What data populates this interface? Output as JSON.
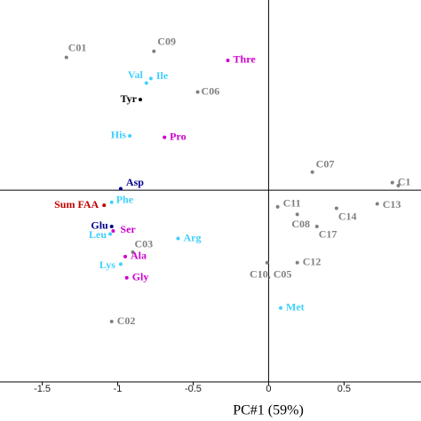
{
  "chart_data": {
    "type": "scatter",
    "x_label": "PC#1 (59%)",
    "xlim": [
      -1.78,
      1.01
    ],
    "ylim": [
      -1.27,
      1.26
    ],
    "xticks": [
      -1.5,
      -1,
      -0.5,
      0,
      0.5
    ],
    "points": [
      {
        "label": "C01",
        "x": -1.34,
        "y": 0.88,
        "color": "#808080"
      },
      {
        "label": "C09",
        "x": -0.76,
        "y": 0.92,
        "color": "#808080"
      },
      {
        "label": "Thre",
        "x": -0.27,
        "y": 0.86,
        "color": "#cc00cc"
      },
      {
        "label": "Val",
        "x": -0.81,
        "y": 0.71,
        "color": "#40d0ff"
      },
      {
        "label": "Ile",
        "x": -0.78,
        "y": 0.74,
        "color": "#40d0ff"
      },
      {
        "label": "C06",
        "x": -0.47,
        "y": 0.65,
        "color": "#808080"
      },
      {
        "label": "Tyr",
        "x": -0.85,
        "y": 0.6,
        "color": "#000000"
      },
      {
        "label": "His",
        "x": -0.92,
        "y": 0.36,
        "color": "#40d0ff"
      },
      {
        "label": "Pro",
        "x": -0.69,
        "y": 0.35,
        "color": "#cc00cc"
      },
      {
        "label": "C07",
        "x": 0.29,
        "y": 0.12,
        "color": "#808080"
      },
      {
        "label": "C1",
        "x": 0.82,
        "y": 0.05,
        "color": "#808080"
      },
      {
        "label": null,
        "x": 0.86,
        "y": 0.03,
        "color": "#808080"
      },
      {
        "label": "Asp",
        "x": -0.98,
        "y": 0.01,
        "color": "#00008b"
      },
      {
        "label": "C13",
        "x": 0.72,
        "y": -0.09,
        "color": "#808080"
      },
      {
        "label": "C11",
        "x": 0.06,
        "y": -0.11,
        "color": "#808080"
      },
      {
        "label": "C14",
        "x": 0.45,
        "y": -0.12,
        "color": "#808080"
      },
      {
        "label": "C08",
        "x": 0.19,
        "y": -0.16,
        "color": "#808080"
      },
      {
        "label": "C17",
        "x": 0.32,
        "y": -0.24,
        "color": "#808080"
      },
      {
        "label": "Sum FAA",
        "x": -1.09,
        "y": -0.1,
        "color": "#c00000"
      },
      {
        "label": "Phe",
        "x": -1.04,
        "y": -0.08,
        "color": "#40d0ff"
      },
      {
        "label": "Glu",
        "x": -1.04,
        "y": -0.24,
        "color": "#00008b"
      },
      {
        "label": "Ser",
        "x": -1.03,
        "y": -0.27,
        "color": "#cc00cc"
      },
      {
        "label": "Leu",
        "x": -1.05,
        "y": -0.29,
        "color": "#40d0ff"
      },
      {
        "label": "Arg",
        "x": -0.6,
        "y": -0.32,
        "color": "#40d0ff"
      },
      {
        "label": "C03",
        "x": -0.9,
        "y": -0.41,
        "color": "#808080"
      },
      {
        "label": "Ala",
        "x": -0.95,
        "y": -0.44,
        "color": "#cc00cc"
      },
      {
        "label": "Lys",
        "x": -0.98,
        "y": -0.49,
        "color": "#40d0ff"
      },
      {
        "label": "Gly",
        "x": -0.94,
        "y": -0.58,
        "color": "#cc00cc"
      },
      {
        "label": "C12",
        "x": 0.19,
        "y": -0.48,
        "color": "#808080"
      },
      {
        "label": "C10, C05",
        "x": -0.01,
        "y": -0.48,
        "color": "#808080"
      },
      {
        "label": "Met",
        "x": 0.08,
        "y": -0.78,
        "color": "#40d0ff"
      },
      {
        "label": "C02",
        "x": -1.04,
        "y": -0.87,
        "color": "#808080"
      }
    ]
  }
}
